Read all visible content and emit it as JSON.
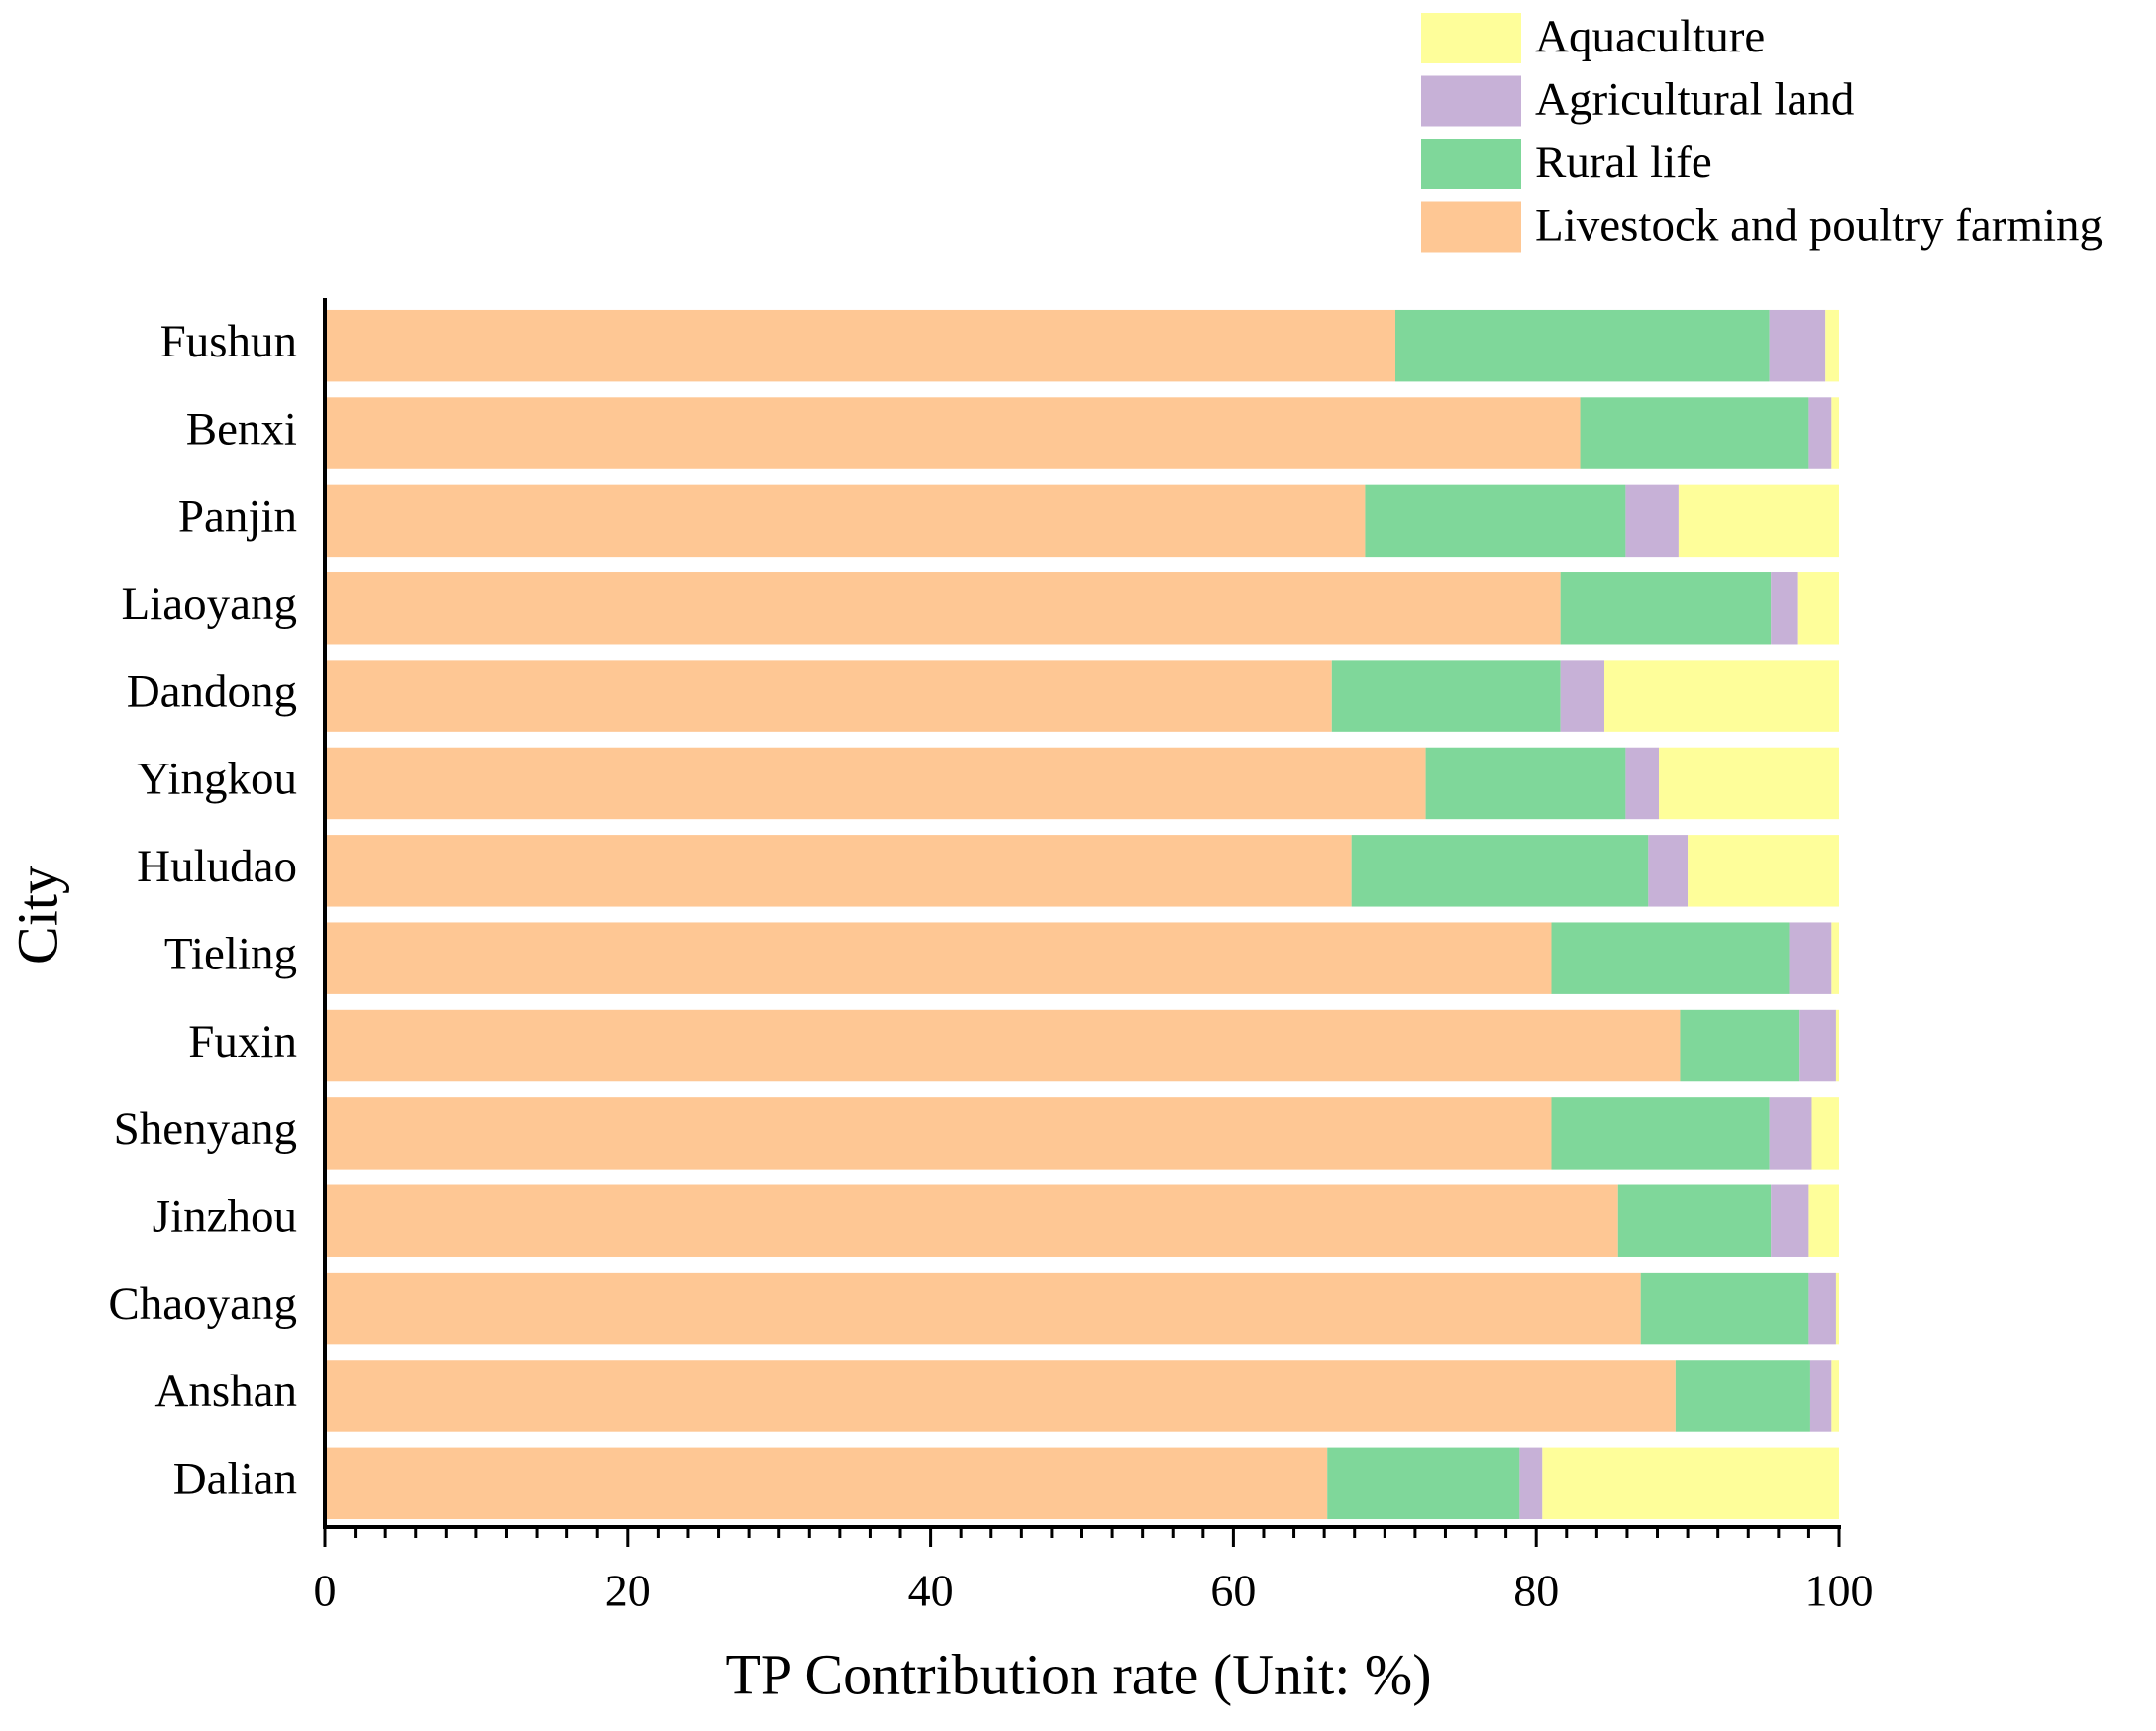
{
  "chart_data": {
    "type": "stacked-barh",
    "xlabel": "TP Contribution rate (Unit: %)",
    "ylabel": "City",
    "categories": [
      "Fushun",
      "Benxi",
      "Panjin",
      "Liaoyang",
      "Dandong",
      "Yingkou",
      "Huludao",
      "Tieling",
      "Fuxin",
      "Shenyang",
      "Jinzhou",
      "Chaoyang",
      "Anshan",
      "Dalian"
    ],
    "series": [
      {
        "name": "Livestock and poultry farming",
        "color": "#fec794",
        "values": [
          70.7,
          82.9,
          68.7,
          81.6,
          66.5,
          72.7,
          67.8,
          81.0,
          89.5,
          81.0,
          85.4,
          86.9,
          89.2,
          66.2
        ]
      },
      {
        "name": "Rural life",
        "color": "#7fd79a",
        "values": [
          24.7,
          15.1,
          17.2,
          13.9,
          15.1,
          13.2,
          19.6,
          15.7,
          7.9,
          14.4,
          10.1,
          11.1,
          8.9,
          12.7
        ]
      },
      {
        "name": "Agricultural land",
        "color": "#c7b1d7",
        "values": [
          3.7,
          1.5,
          3.5,
          1.8,
          2.9,
          2.2,
          2.6,
          2.8,
          2.4,
          2.8,
          2.5,
          1.8,
          1.4,
          1.5
        ]
      },
      {
        "name": "Aquaculture",
        "color": "#fefe9a",
        "values": [
          0.9,
          0.5,
          10.6,
          2.7,
          15.5,
          11.9,
          10.0,
          0.5,
          0.2,
          1.8,
          2.0,
          0.2,
          0.5,
          19.6
        ]
      }
    ],
    "xlim": [
      0,
      100
    ],
    "xticks": [
      0,
      20,
      40,
      60,
      80,
      100
    ],
    "legend": "top-right"
  }
}
